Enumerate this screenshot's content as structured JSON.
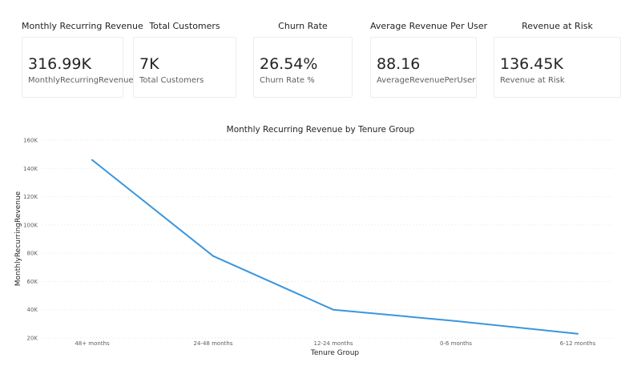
{
  "kpis": [
    {
      "title": "Monthly Recurring Revenue",
      "value": "316.99K",
      "label": "MonthlyRecurringRevenue"
    },
    {
      "title": "Total Customers",
      "value": "7K",
      "label": "Total Customers"
    },
    {
      "title": "Churn Rate",
      "value": "26.54%",
      "label": "Churn Rate %"
    },
    {
      "title": "Average Revenue Per User",
      "value": "88.16",
      "label": "AverageRevenuePerUser"
    },
    {
      "title": "Revenue at Risk",
      "value": "136.45K",
      "label": "Revenue at Risk"
    }
  ],
  "chart_data": {
    "type": "line",
    "title": "Monthly Recurring Revenue by Tenure Group",
    "xlabel": "Tenure Group",
    "ylabel": "MonthlyRecurringRevenue",
    "categories": [
      "48+ months",
      "24-48 months",
      "12-24 months",
      "0-6 months",
      "6-12 months"
    ],
    "series": [
      {
        "values": [
          146000,
          78000,
          40000,
          32000,
          23000
        ]
      }
    ],
    "ylim": [
      20000,
      160000
    ],
    "yticks": [
      20000,
      40000,
      60000,
      80000,
      100000,
      120000,
      140000,
      160000
    ],
    "ytick_labels": [
      "20K",
      "40K",
      "60K",
      "80K",
      "100K",
      "120K",
      "140K",
      "160K"
    ],
    "grid": true,
    "line_color": "#3a96dd",
    "grid_color": "#e6e6e6"
  }
}
